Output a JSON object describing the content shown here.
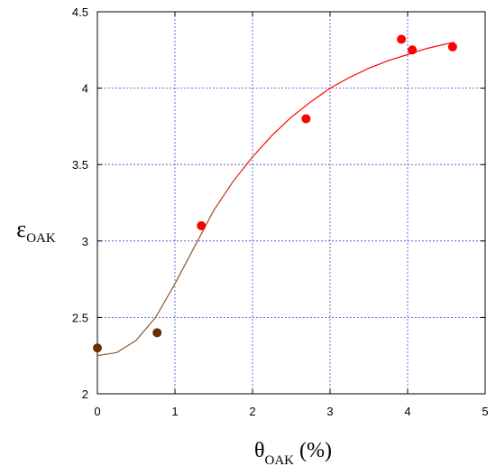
{
  "chart_data": {
    "type": "scatter",
    "xlabel": "θ",
    "xlabel_subscript": "OAK",
    "xlabel_suffix": " (%)",
    "ylabel": "ε",
    "ylabel_subscript": "OAK",
    "xlim": [
      0,
      5
    ],
    "ylim": [
      2,
      4.5
    ],
    "xticks": [
      0,
      1,
      2,
      3,
      4,
      5
    ],
    "xtick_labels": [
      "0",
      "1",
      "2",
      "3",
      "4",
      "5"
    ],
    "yticks": [
      2,
      2.5,
      3,
      3.5,
      4,
      4.5
    ],
    "ytick_labels": [
      "2",
      "2.5",
      "3",
      "3.5",
      "4",
      "4.5"
    ],
    "grid": true,
    "series": [
      {
        "color": "#663300",
        "points": [
          {
            "x": 0.0,
            "y": 2.3
          },
          {
            "x": 0.77,
            "y": 2.4
          }
        ]
      },
      {
        "color": "#ff0000",
        "points": [
          {
            "x": 1.34,
            "y": 3.1
          },
          {
            "x": 2.69,
            "y": 3.8
          },
          {
            "x": 3.92,
            "y": 4.32
          },
          {
            "x": 4.06,
            "y": 4.25
          },
          {
            "x": 4.58,
            "y": 4.27
          }
        ]
      }
    ],
    "fit_curve": {
      "color_start": "#8b5a2b",
      "color_end": "#ff0000",
      "x": [
        0,
        0.25,
        0.5,
        0.75,
        1.0,
        1.25,
        1.5,
        1.75,
        2.0,
        2.25,
        2.5,
        2.75,
        3.0,
        3.25,
        3.5,
        3.75,
        4.0,
        4.25,
        4.5,
        4.6
      ],
      "y": [
        2.25,
        2.27,
        2.35,
        2.5,
        2.72,
        2.96,
        3.2,
        3.39,
        3.55,
        3.69,
        3.81,
        3.91,
        4.0,
        4.07,
        4.13,
        4.18,
        4.22,
        4.26,
        4.29,
        4.3
      ]
    },
    "colors": {
      "grid": "#4444cc",
      "axis": "#000000"
    }
  }
}
